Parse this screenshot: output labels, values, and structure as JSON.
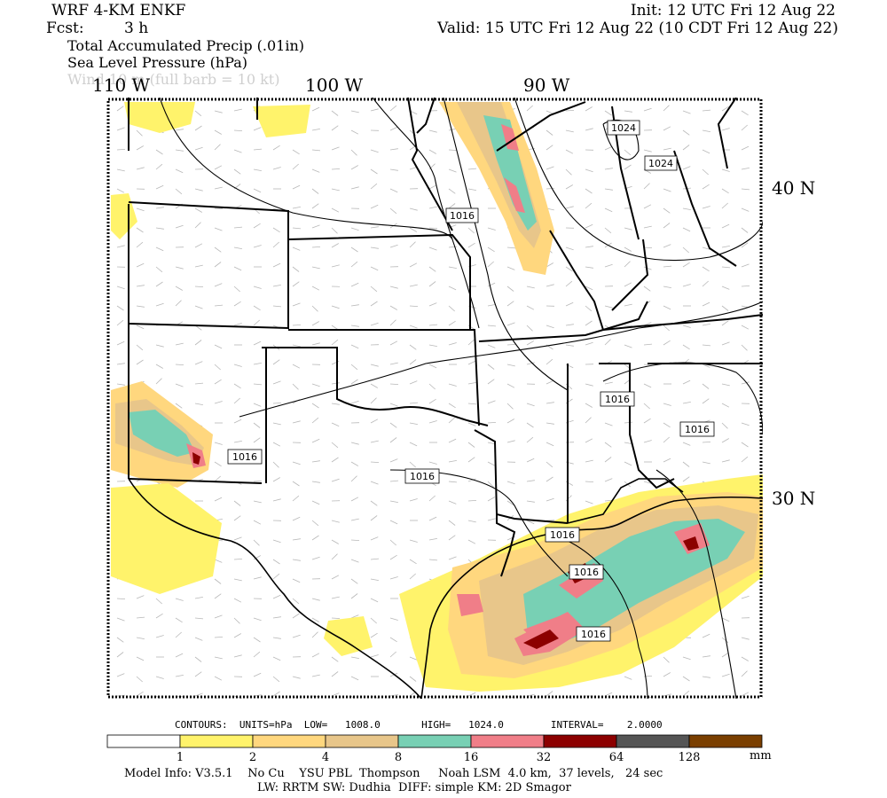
{
  "header": {
    "model": "WRF 4-KM ENKF",
    "fcst_label": "Fcst:",
    "fcst_value": "3 h",
    "init": "Init: 12 UTC Fri 12 Aug 22",
    "valid": "Valid: 15 UTC Fri 12 Aug 22 (10 CDT Fri 12 Aug 22)",
    "fields": [
      "Total Accumulated Precip (.01in)",
      "Sea Level Pressure (hPa)",
      "Wind 10 m (full barb = 10 kt)"
    ]
  },
  "map": {
    "longitude_labels": [
      "110 W",
      "100 W",
      "90 W"
    ],
    "latitude_labels": [
      "40 N",
      "30 N"
    ],
    "isobar_labels": [
      "1024",
      "1024",
      "1016",
      "1016",
      "1016",
      "1016",
      "1016",
      "1016",
      "1016",
      "1016"
    ]
  },
  "contours": {
    "text": "CONTOURS:  UNITS=hPa  LOW=   1008.0       HIGH=   1024.0        INTERVAL=    2.0000"
  },
  "colorbar": {
    "colors": [
      "#ffffff",
      "#fff36b",
      "#ffd77e",
      "#e8c68a",
      "#78d0b4",
      "#f07e88",
      "#8c0000",
      "#555555",
      "#7a3f00"
    ],
    "ticks": [
      "1",
      "2",
      "4",
      "8",
      "16",
      "32",
      "64",
      "128"
    ],
    "units": "mm"
  },
  "footer": {
    "line1": "Model Info: V3.5.1    No Cu    YSU PBL  Thompson     Noah LSM  4.0 km,  37 levels,   24 sec",
    "line2": "LW: RRTM SW: Dudhia  DIFF: simple KM: 2D Smagor"
  },
  "style": {
    "light_yellow": "#fff36b",
    "tan": "#ffd77e",
    "teal": "#78d0b4",
    "pink": "#f07e88",
    "dark_red": "#8c0000"
  }
}
